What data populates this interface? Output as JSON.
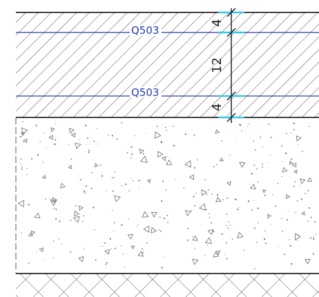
{
  "section": {
    "layers": [
      {
        "name": "Q503",
        "role": "upper-mesh"
      },
      {
        "name": "Q503",
        "role": "lower-mesh"
      }
    ],
    "dimensions": [
      {
        "value": "4",
        "role": "top-cover"
      },
      {
        "value": "12",
        "role": "core"
      },
      {
        "value": "4",
        "role": "bottom-cover"
      }
    ]
  },
  "colors": {
    "mesh_line": "#2a3bb0",
    "dimension_tick": "#35c8e8",
    "outline": "#000000",
    "hatch": "#333333",
    "aggregate": "#777777"
  }
}
